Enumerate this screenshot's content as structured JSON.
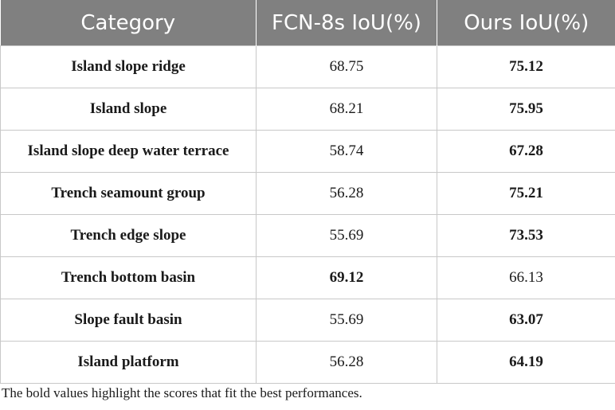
{
  "table": {
    "headers": [
      "Category",
      "FCN-8s IoU(%)",
      "Ours IoU(%)"
    ],
    "rows": [
      {
        "category": "Island slope ridge",
        "fcn": "68.75",
        "ours": "75.12",
        "best": "ours"
      },
      {
        "category": "Island slope",
        "fcn": "68.21",
        "ours": "75.95",
        "best": "ours"
      },
      {
        "category": "Island slope deep water terrace",
        "fcn": "58.74",
        "ours": "67.28",
        "best": "ours"
      },
      {
        "category": "Trench seamount group",
        "fcn": "56.28",
        "ours": "75.21",
        "best": "ours"
      },
      {
        "category": "Trench edge slope",
        "fcn": "55.69",
        "ours": "73.53",
        "best": "ours"
      },
      {
        "category": "Trench bottom basin",
        "fcn": "69.12",
        "ours": "66.13",
        "best": "fcn"
      },
      {
        "category": "Slope fault basin",
        "fcn": "55.69",
        "ours": "63.07",
        "best": "ours"
      },
      {
        "category": "Island platform",
        "fcn": "56.28",
        "ours": "64.19",
        "best": "ours"
      }
    ]
  },
  "footnote": "The bold values highlight the scores that fit the best performances.",
  "colors": {
    "header_bg": "#808080",
    "header_text": "#ffffff",
    "grid": "#c8c8c8"
  }
}
